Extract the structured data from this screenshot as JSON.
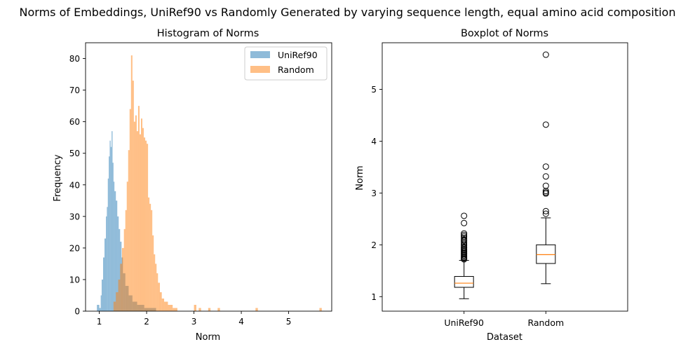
{
  "suptitle": "Norms of Embeddings, UniRef90 vs Randomly Generated by varying sequence length, equal amino acid composition",
  "colors": {
    "uniref": "#1f77b4",
    "random": "#ff7f0e",
    "median": "#ff7f0e"
  },
  "chart_data": [
    {
      "type": "histogram",
      "title": "Histogram of Norms",
      "xlabel": "Norm",
      "ylabel": "Frequency",
      "xlim": [
        0.71,
        5.91
      ],
      "ylim": [
        0,
        85
      ],
      "xticks": [
        1,
        2,
        3,
        4,
        5
      ],
      "yticks": [
        0,
        10,
        20,
        30,
        40,
        50,
        60,
        70,
        80
      ],
      "legend": "top-right",
      "alpha": 0.5,
      "series": [
        {
          "name": "UniRef90",
          "color": "#1f77b4",
          "bins": [
            [
              0.95,
              1.0,
              2
            ],
            [
              1.0,
              1.03,
              1
            ],
            [
              1.03,
              1.05,
              5
            ],
            [
              1.05,
              1.08,
              10
            ],
            [
              1.08,
              1.11,
              17
            ],
            [
              1.11,
              1.14,
              23
            ],
            [
              1.14,
              1.16,
              30
            ],
            [
              1.16,
              1.18,
              33
            ],
            [
              1.18,
              1.2,
              42
            ],
            [
              1.2,
              1.22,
              49
            ],
            [
              1.22,
              1.24,
              54
            ],
            [
              1.24,
              1.26,
              52
            ],
            [
              1.26,
              1.28,
              57
            ],
            [
              1.28,
              1.3,
              47
            ],
            [
              1.3,
              1.32,
              41
            ],
            [
              1.32,
              1.35,
              38
            ],
            [
              1.35,
              1.38,
              35
            ],
            [
              1.38,
              1.41,
              30
            ],
            [
              1.41,
              1.44,
              26
            ],
            [
              1.44,
              1.47,
              22
            ],
            [
              1.47,
              1.5,
              17
            ],
            [
              1.5,
              1.55,
              12
            ],
            [
              1.55,
              1.62,
              8
            ],
            [
              1.62,
              1.7,
              5
            ],
            [
              1.7,
              1.8,
              3
            ],
            [
              1.8,
              1.95,
              2
            ],
            [
              1.95,
              2.2,
              1
            ]
          ]
        },
        {
          "name": "Random",
          "color": "#ff7f0e",
          "bins": [
            [
              1.3,
              1.35,
              3
            ],
            [
              1.35,
              1.4,
              6
            ],
            [
              1.4,
              1.44,
              10
            ],
            [
              1.44,
              1.48,
              15
            ],
            [
              1.48,
              1.52,
              20
            ],
            [
              1.52,
              1.55,
              26
            ],
            [
              1.55,
              1.58,
              32
            ],
            [
              1.58,
              1.61,
              41
            ],
            [
              1.61,
              1.64,
              51
            ],
            [
              1.64,
              1.67,
              64
            ],
            [
              1.67,
              1.7,
              81
            ],
            [
              1.7,
              1.73,
              73
            ],
            [
              1.73,
              1.76,
              60
            ],
            [
              1.76,
              1.79,
              62
            ],
            [
              1.79,
              1.82,
              57
            ],
            [
              1.82,
              1.85,
              65
            ],
            [
              1.85,
              1.88,
              56
            ],
            [
              1.88,
              1.91,
              61
            ],
            [
              1.91,
              1.94,
              58
            ],
            [
              1.94,
              1.97,
              55
            ],
            [
              1.97,
              2.0,
              54
            ],
            [
              2.0,
              2.03,
              53
            ],
            [
              2.03,
              2.06,
              36
            ],
            [
              2.06,
              2.09,
              34
            ],
            [
              2.09,
              2.12,
              32
            ],
            [
              2.12,
              2.15,
              24
            ],
            [
              2.15,
              2.18,
              18
            ],
            [
              2.18,
              2.21,
              15
            ],
            [
              2.21,
              2.24,
              12
            ],
            [
              2.24,
              2.28,
              9
            ],
            [
              2.28,
              2.32,
              6
            ],
            [
              2.32,
              2.37,
              4
            ],
            [
              2.37,
              2.45,
              3
            ],
            [
              2.45,
              2.55,
              2
            ],
            [
              2.55,
              2.65,
              1
            ],
            [
              3.0,
              3.05,
              2
            ],
            [
              3.1,
              3.15,
              1
            ],
            [
              3.3,
              3.35,
              1
            ],
            [
              3.5,
              3.55,
              1
            ],
            [
              4.3,
              4.35,
              1
            ],
            [
              5.65,
              5.7,
              1
            ]
          ]
        }
      ]
    },
    {
      "type": "box",
      "title": "Boxplot of Norms",
      "xlabel": "Dataset",
      "ylabel": "Norm",
      "ylim": [
        0.72,
        5.9
      ],
      "yticks": [
        1,
        2,
        3,
        4,
        5
      ],
      "categories": [
        "UniRef90",
        "Random"
      ],
      "boxes": [
        {
          "name": "UniRef90",
          "whisker_low": 0.96,
          "q1": 1.18,
          "median": 1.26,
          "q3": 1.39,
          "whisker_high": 1.7,
          "fliers": [
            1.72,
            1.74,
            1.76,
            1.78,
            1.8,
            1.82,
            1.84,
            1.86,
            1.88,
            1.9,
            1.92,
            1.94,
            1.96,
            1.99,
            2.02,
            2.05,
            2.08,
            2.1,
            2.13,
            2.16,
            2.19,
            2.22,
            2.42,
            2.56
          ]
        },
        {
          "name": "Random",
          "whisker_low": 1.25,
          "q1": 1.64,
          "median": 1.81,
          "q3": 2.0,
          "whisker_high": 2.52,
          "fliers": [
            2.6,
            2.65,
            2.99,
            3.01,
            3.04,
            3.14,
            3.32,
            3.51,
            4.32,
            5.67
          ]
        }
      ]
    }
  ]
}
